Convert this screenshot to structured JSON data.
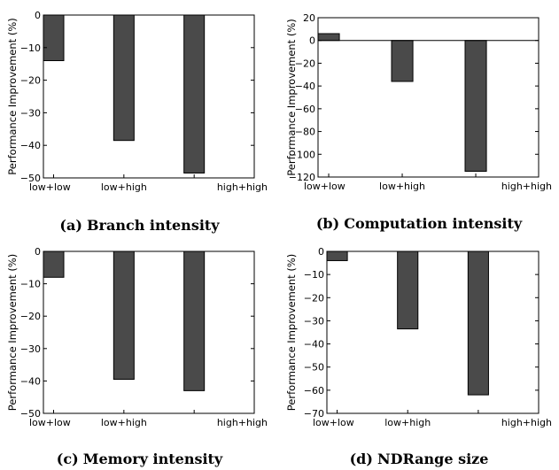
{
  "colors": {
    "bar": "#4a4a4a",
    "axis": "#000000"
  },
  "chart_data": [
    {
      "type": "bar",
      "caption_letter": "(a)",
      "caption": "Branch intensity",
      "ylabel": "Performance Improvement (%)",
      "categories": [
        "low+low",
        "low+high",
        "high+high"
      ],
      "values": [
        -14,
        -38.5,
        -48.5
      ],
      "ylim": [
        -50,
        0
      ],
      "yticks": [
        0,
        -10,
        -20,
        -30,
        -40,
        -50
      ],
      "grid": false
    },
    {
      "type": "bar",
      "caption_letter": "(b)",
      "caption": "Computation intensity",
      "ylabel": "Performance Improvement (%)",
      "categories": [
        "low+low",
        "low+high",
        "high+high"
      ],
      "values": [
        6,
        -36,
        -115
      ],
      "ylim": [
        -120,
        20
      ],
      "yticks": [
        20,
        0,
        -20,
        -40,
        -60,
        -80,
        -100,
        -120
      ],
      "grid": false
    },
    {
      "type": "bar",
      "caption_letter": "(c)",
      "caption": "Memory intensity",
      "ylabel": "Performance Improvement (%)",
      "categories": [
        "low+low",
        "low+high",
        "high+high"
      ],
      "values": [
        -8,
        -39.5,
        -43
      ],
      "ylim": [
        -50,
        0
      ],
      "yticks": [
        0,
        -10,
        -20,
        -30,
        -40,
        -50
      ],
      "grid": false
    },
    {
      "type": "bar",
      "caption_letter": "(d)",
      "caption": "NDRange size",
      "ylabel": "Performance Improvement (%)",
      "categories": [
        "low+low",
        "low+high",
        "high+high"
      ],
      "values": [
        -4,
        -33.5,
        -62
      ],
      "ylim": [
        -70,
        0
      ],
      "yticks": [
        0,
        -10,
        -20,
        -30,
        -40,
        -50,
        -60,
        -70
      ],
      "grid": false
    }
  ]
}
